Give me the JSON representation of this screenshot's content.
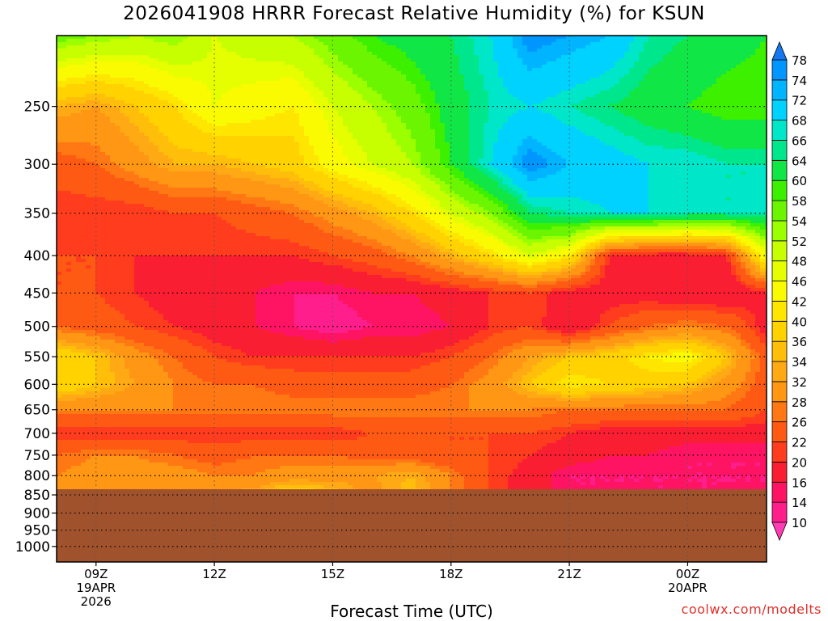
{
  "chart_data": {
    "type": "heatmap",
    "title": "2026041908 HRRR Forecast Relative Humidity (%) for KSUN",
    "xlabel": "Forecast Time (UTC)",
    "ylabel": "",
    "credit": "coolwx.com/modelts",
    "x_ticks": [
      {
        "hour": 9,
        "label": "09Z",
        "date_label": "19APR",
        "year_label": "2026"
      },
      {
        "hour": 12,
        "label": "12Z"
      },
      {
        "hour": 15,
        "label": "15Z"
      },
      {
        "hour": 18,
        "label": "18Z"
      },
      {
        "hour": 21,
        "label": "21Z"
      },
      {
        "hour": 24,
        "label": "00Z",
        "date_label": "20APR"
      }
    ],
    "xlim": [
      8,
      26
    ],
    "y_axis": "pressure (log scale)",
    "ylim": [
      1050,
      200
    ],
    "y_ticks": [
      250,
      300,
      350,
      400,
      450,
      500,
      550,
      600,
      650,
      700,
      750,
      800,
      850,
      900,
      950,
      1000
    ],
    "grid": true,
    "surface_pressure": 835,
    "surface_color": "#a0522d",
    "colorbar": {
      "placement": "right",
      "levels": [
        10,
        14,
        16,
        20,
        22,
        26,
        28,
        32,
        34,
        36,
        40,
        42,
        46,
        48,
        52,
        54,
        58,
        60,
        64,
        66,
        68,
        72,
        74,
        78
      ],
      "colors": [
        "#ff3cb4",
        "#ff1e8c",
        "#ff1464",
        "#fa1e32",
        "#ff3c1e",
        "#ff5a14",
        "#ff7814",
        "#ff9614",
        "#ffaa14",
        "#ffbe0a",
        "#ffd200",
        "#ffe600",
        "#fafa00",
        "#e6ff00",
        "#c8ff00",
        "#9bff00",
        "#6cf500",
        "#3cf000",
        "#10e646",
        "#00e68c",
        "#00e6c8",
        "#00d2ff",
        "#00b4ff",
        "#0096ff",
        "#1478f0"
      ]
    },
    "times": [
      8,
      9,
      10,
      11,
      12,
      13,
      14,
      15,
      16,
      17,
      18,
      19,
      20,
      21,
      22,
      23,
      24,
      25,
      26
    ],
    "levels": [
      200,
      250,
      300,
      350,
      400,
      450,
      500,
      550,
      600,
      650,
      700,
      750,
      800,
      850
    ],
    "rh": [
      [
        56,
        54,
        52,
        54,
        48,
        50,
        52,
        56,
        60,
        62,
        64,
        68,
        76,
        74,
        72,
        66,
        64,
        62,
        60
      ],
      [
        34,
        32,
        36,
        40,
        46,
        44,
        42,
        48,
        52,
        56,
        62,
        66,
        68,
        66,
        64,
        62,
        60,
        58,
        58
      ],
      [
        24,
        26,
        30,
        34,
        34,
        36,
        38,
        44,
        48,
        52,
        60,
        68,
        76,
        72,
        70,
        68,
        68,
        66,
        66
      ],
      [
        20,
        20,
        20,
        22,
        22,
        24,
        26,
        30,
        34,
        40,
        48,
        54,
        64,
        66,
        68,
        68,
        66,
        66,
        66
      ],
      [
        22,
        22,
        20,
        20,
        20,
        20,
        20,
        22,
        24,
        28,
        34,
        40,
        48,
        42,
        20,
        18,
        18,
        20,
        46
      ],
      [
        22,
        22,
        20,
        18,
        16,
        16,
        14,
        14,
        16,
        16,
        18,
        20,
        22,
        18,
        18,
        18,
        16,
        16,
        20
      ],
      [
        26,
        24,
        22,
        20,
        18,
        16,
        14,
        12,
        14,
        14,
        16,
        20,
        22,
        16,
        22,
        26,
        28,
        26,
        18
      ],
      [
        40,
        36,
        30,
        26,
        22,
        20,
        20,
        20,
        20,
        20,
        22,
        26,
        32,
        36,
        38,
        42,
        44,
        36,
        24
      ],
      [
        40,
        36,
        32,
        28,
        26,
        26,
        24,
        24,
        24,
        24,
        26,
        30,
        36,
        42,
        40,
        38,
        36,
        30,
        24
      ],
      [
        28,
        28,
        28,
        28,
        28,
        28,
        28,
        28,
        28,
        28,
        28,
        28,
        28,
        26,
        26,
        26,
        26,
        26,
        22
      ],
      [
        20,
        20,
        20,
        20,
        20,
        20,
        20,
        20,
        22,
        22,
        22,
        22,
        22,
        20,
        18,
        18,
        18,
        18,
        18
      ],
      [
        26,
        28,
        28,
        26,
        24,
        26,
        26,
        26,
        24,
        24,
        22,
        22,
        20,
        18,
        16,
        16,
        14,
        14,
        14
      ],
      [
        28,
        30,
        30,
        30,
        28,
        28,
        30,
        30,
        32,
        34,
        28,
        22,
        18,
        14,
        14,
        14,
        14,
        14,
        14
      ],
      [
        28,
        28,
        28,
        28,
        32,
        34,
        40,
        36,
        30,
        36,
        28,
        22,
        18,
        14,
        14,
        14,
        14,
        14,
        14
      ]
    ]
  }
}
